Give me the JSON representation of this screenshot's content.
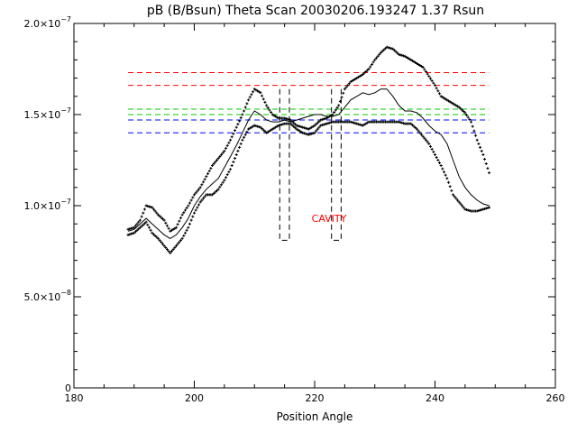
{
  "chart_data": {
    "type": "scatter",
    "title": "pB (B/Bsun) Theta Scan 20030206.193247 1.37 Rsun",
    "xlabel": "Position Angle",
    "ylabel": "",
    "xlim": [
      180,
      260
    ],
    "ylim": [
      0,
      2e-07
    ],
    "xticks": [
      180,
      200,
      220,
      240,
      260
    ],
    "xtick_labels": [
      "180",
      "200",
      "220",
      "240",
      "260"
    ],
    "yticks": [
      0,
      5e-08,
      1e-07,
      1.5e-07,
      2e-07
    ],
    "ytick_labels": [
      {
        "mantissa": "0",
        "exponent": ""
      },
      {
        "mantissa": "5.0×10",
        "exponent": "−8"
      },
      {
        "mantissa": "1.0×10",
        "exponent": "−7"
      },
      {
        "mantissa": "1.5×10",
        "exponent": "−7"
      },
      {
        "mantissa": "2.0×10",
        "exponent": "−7"
      }
    ],
    "grid": false,
    "reference_lines": [
      {
        "y": 1.73e-07,
        "color": "#ff0000",
        "style": "dashed",
        "x": [
          189,
          249
        ]
      },
      {
        "y": 1.66e-07,
        "color": "#ff0000",
        "style": "dashed",
        "x": [
          189,
          249
        ]
      },
      {
        "y": 1.53e-07,
        "color": "#00cc00",
        "style": "dashed",
        "x": [
          189,
          249
        ]
      },
      {
        "y": 1.5e-07,
        "color": "#00cc00",
        "style": "dashed",
        "x": [
          189,
          249
        ]
      },
      {
        "y": 1.47e-07,
        "color": "#0000ff",
        "style": "dashed",
        "x": [
          189,
          249
        ]
      },
      {
        "y": 1.4e-07,
        "color": "#0000ff",
        "style": "dashed",
        "x": [
          189,
          249
        ]
      }
    ],
    "cavity_boxes": [
      {
        "x": [
          214.2,
          215.8
        ],
        "y": [
          8.1e-08,
          1.64e-07
        ]
      },
      {
        "x": [
          222.8,
          224.4
        ],
        "y": [
          8.1e-08,
          1.64e-07
        ]
      }
    ],
    "annotation": {
      "text": "CAVITY",
      "x": 219.5,
      "y": 9.1e-08,
      "color": "#ff0000"
    },
    "series_a": {
      "x": [
        189,
        190,
        191,
        192,
        193,
        194,
        195,
        196,
        197,
        198,
        199,
        200,
        201,
        202,
        203,
        204,
        205,
        206,
        207,
        208,
        209,
        210,
        211,
        212,
        213,
        214,
        215,
        216,
        217,
        218,
        219,
        220,
        221,
        222,
        223,
        224,
        225,
        226,
        227,
        228,
        229,
        230,
        231,
        232,
        233,
        234,
        235,
        236,
        237,
        238,
        239,
        240,
        241,
        242,
        243,
        244,
        245,
        246,
        247,
        248,
        249
      ],
      "y": [
        0.87,
        0.88,
        0.92,
        1.0,
        0.99,
        0.95,
        0.92,
        0.86,
        0.88,
        0.95,
        1.0,
        1.06,
        1.1,
        1.16,
        1.22,
        1.26,
        1.3,
        1.36,
        1.43,
        1.5,
        1.58,
        1.64,
        1.62,
        1.55,
        1.5,
        1.48,
        1.48,
        1.47,
        1.44,
        1.43,
        1.42,
        1.44,
        1.47,
        1.48,
        1.5,
        1.55,
        1.64,
        1.68,
        1.7,
        1.72,
        1.75,
        1.8,
        1.84,
        1.87,
        1.86,
        1.83,
        1.82,
        1.8,
        1.78,
        1.76,
        1.71,
        1.66,
        1.6,
        1.58,
        1.56,
        1.54,
        1.51,
        1.46,
        1.36,
        1.28,
        1.18
      ]
    },
    "series_b": {
      "x": [
        189,
        190,
        191,
        192,
        193,
        194,
        195,
        196,
        197,
        198,
        199,
        200,
        201,
        202,
        203,
        204,
        205,
        206,
        207,
        208,
        209,
        210,
        211,
        212,
        213,
        214,
        215,
        216,
        217,
        218,
        219,
        220,
        221,
        222,
        223,
        224,
        225,
        226,
        227,
        228,
        229,
        230,
        231,
        232,
        233,
        234,
        235,
        236,
        237,
        238,
        239,
        240,
        241,
        242,
        243,
        244,
        245,
        246,
        247,
        248,
        249
      ],
      "y": [
        0.84,
        0.85,
        0.88,
        0.91,
        0.85,
        0.82,
        0.78,
        0.74,
        0.78,
        0.82,
        0.88,
        0.96,
        1.02,
        1.06,
        1.06,
        1.09,
        1.14,
        1.2,
        1.28,
        1.36,
        1.42,
        1.44,
        1.43,
        1.4,
        1.42,
        1.44,
        1.45,
        1.45,
        1.42,
        1.4,
        1.39,
        1.4,
        1.44,
        1.45,
        1.46,
        1.46,
        1.46,
        1.46,
        1.45,
        1.44,
        1.46,
        1.46,
        1.46,
        1.46,
        1.46,
        1.46,
        1.45,
        1.45,
        1.42,
        1.38,
        1.34,
        1.28,
        1.22,
        1.15,
        1.06,
        1.02,
        0.98,
        0.97,
        0.97,
        0.98,
        0.99
      ]
    },
    "smooth_curve": {
      "x": [
        189,
        190,
        191,
        192,
        193,
        194,
        195,
        196,
        197,
        198,
        199,
        200,
        201,
        202,
        203,
        204,
        205,
        206,
        207,
        208,
        209,
        210,
        211,
        212,
        213,
        214,
        215,
        216,
        217,
        218,
        219,
        220,
        221,
        222,
        223,
        224,
        225,
        226,
        227,
        228,
        229,
        230,
        231,
        232,
        233,
        234,
        235,
        236,
        237,
        238,
        239,
        240,
        241,
        242,
        243,
        244,
        245,
        246,
        247,
        248,
        249
      ],
      "y": [
        0.86,
        0.87,
        0.9,
        0.93,
        0.9,
        0.87,
        0.84,
        0.82,
        0.84,
        0.88,
        0.93,
        1.0,
        1.05,
        1.09,
        1.12,
        1.15,
        1.21,
        1.27,
        1.33,
        1.4,
        1.47,
        1.52,
        1.5,
        1.47,
        1.46,
        1.46,
        1.47,
        1.46,
        1.47,
        1.48,
        1.49,
        1.5,
        1.5,
        1.49,
        1.49,
        1.5,
        1.54,
        1.58,
        1.6,
        1.62,
        1.61,
        1.62,
        1.64,
        1.64,
        1.6,
        1.55,
        1.52,
        1.52,
        1.51,
        1.48,
        1.44,
        1.41,
        1.39,
        1.34,
        1.25,
        1.16,
        1.1,
        1.06,
        1.03,
        1.01,
        1.0
      ],
      "unit_scale": 1e-07
    }
  }
}
